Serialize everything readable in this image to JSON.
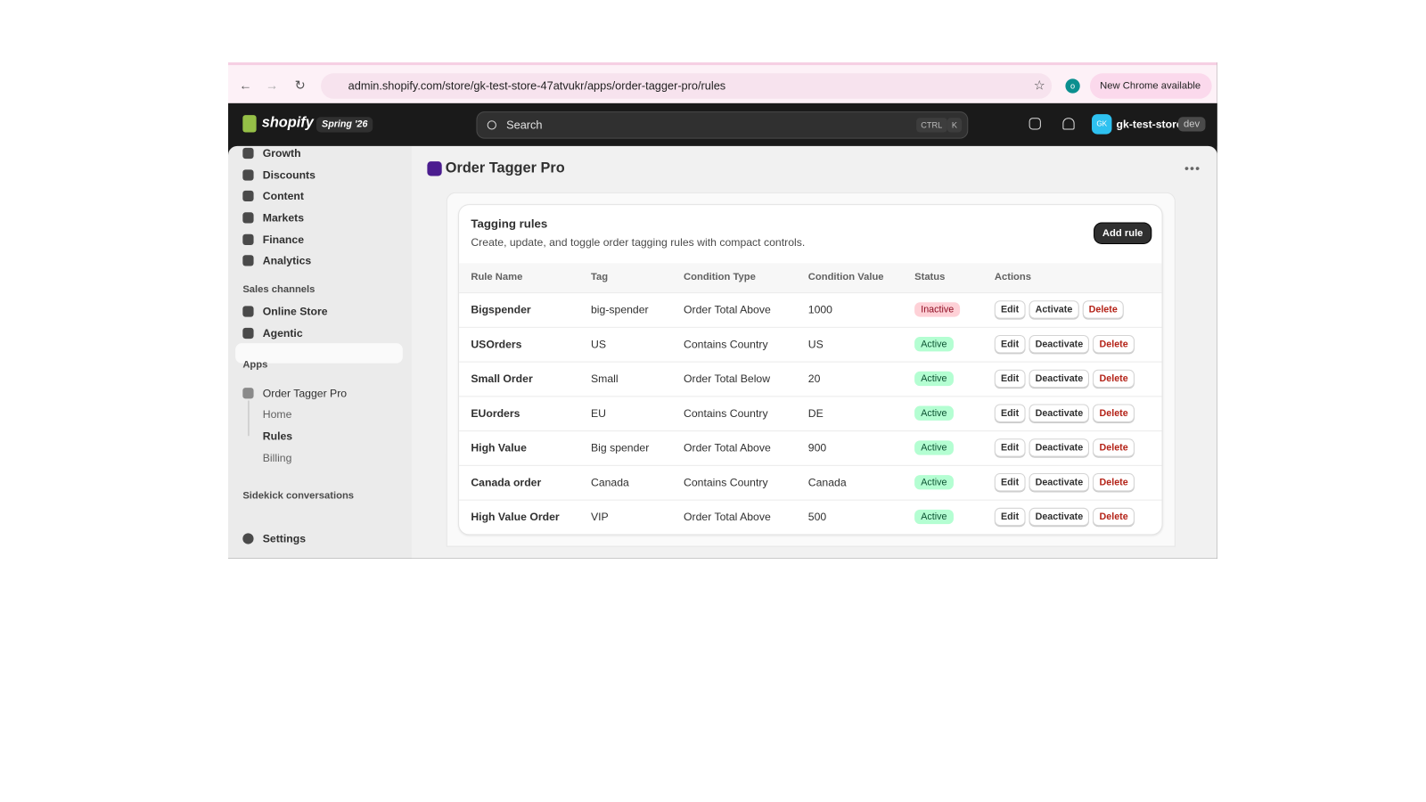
{
  "browser": {
    "url": "admin.shopify.com/store/gk-test-store-47atvukr/apps/order-tagger-pro/rules",
    "profile": "o",
    "update": "New Chrome available"
  },
  "topbar": {
    "logo": "shopify",
    "badge": "Spring '26",
    "search": "Search",
    "shortcut": [
      "CTRL",
      "K"
    ],
    "avatar": "GK",
    "store": "gk-test-store",
    "env": "dev"
  },
  "sidebar": {
    "items": [
      "Growth",
      "Discounts",
      "Content",
      "Markets",
      "Finance",
      "Analytics"
    ],
    "sales_channels": {
      "title": "Sales channels",
      "items": [
        "Online Store",
        "Agentic"
      ]
    },
    "apps": {
      "title": "Apps",
      "app": "Order Tagger Pro",
      "subitems": [
        "Home",
        "Rules",
        "Billing"
      ]
    },
    "sidekick": "Sidekick conversations",
    "settings": "Settings"
  },
  "page": {
    "title": "Order Tagger Pro"
  },
  "card": {
    "title": "Tagging rules",
    "description": "Create, update, and toggle order tagging rules with compact controls.",
    "button": "Add rule"
  },
  "table": {
    "headers": [
      "Rule Name",
      "Tag",
      "Condition Type",
      "Condition Value",
      "Status",
      "Actions"
    ],
    "rows": [
      [
        "Bigspender",
        "big-spender",
        "Order Total Above",
        "1000",
        "Inactive",
        [
          "Edit",
          "Activate",
          "Delete"
        ]
      ],
      [
        "USOrders",
        "US",
        "Contains Country",
        "US",
        "Active",
        [
          "Edit",
          "Deactivate",
          "Delete"
        ]
      ],
      [
        "Small Order",
        "Small",
        "Order Total Below",
        "20",
        "Active",
        [
          "Edit",
          "Deactivate",
          "Delete"
        ]
      ],
      [
        "EUorders",
        "EU",
        "Contains Country",
        "DE",
        "Active",
        [
          "Edit",
          "Deactivate",
          "Delete"
        ]
      ],
      [
        "High Value",
        "Big spender",
        "Order Total Above",
        "900",
        "Active",
        [
          "Edit",
          "Deactivate",
          "Delete"
        ]
      ],
      [
        "Canada order",
        "Canada",
        "Contains Country",
        "Canada",
        "Active",
        [
          "Edit",
          "Deactivate",
          "Delete"
        ]
      ],
      [
        "High Value Order",
        "VIP",
        "Order Total Above",
        "500",
        "Active",
        [
          "Edit",
          "Deactivate",
          "Delete"
        ]
      ]
    ]
  }
}
